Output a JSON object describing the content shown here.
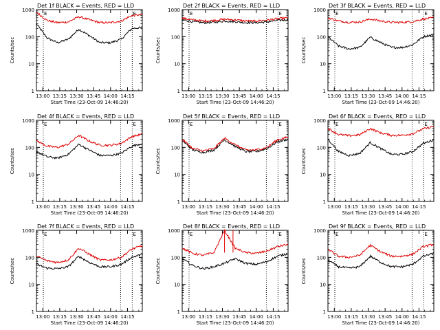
{
  "panel_title_suffix": "BLACK = Events, RED = LLD",
  "ylabel": "Counts/sec",
  "xlabel": "Start Time (23-Oct-09 14:46:20)",
  "x_tick_labels": [
    "13:00",
    "13:15",
    "13:30",
    "13:45",
    "14:00",
    "14:15"
  ],
  "y_tick_labels": [
    "1",
    "10",
    "100",
    "1000"
  ],
  "marker_text": "E",
  "colors": {
    "events": "#000000",
    "lld": "#dd0000",
    "axes": "#000000"
  },
  "chart_data": [
    {
      "type": "line",
      "title": "Det 1f BLACK = Events, RED = LLD",
      "xlabel": "Start Time (23-Oct-09 14:46:20)",
      "ylabel": "Counts/sec",
      "scale": "log",
      "ylim": [
        1,
        1000
      ],
      "x": [
        0.0,
        0.1,
        0.2,
        0.3,
        0.4,
        0.5,
        0.6,
        0.7,
        0.8,
        0.9,
        1.0
      ],
      "series": [
        {
          "name": "Events",
          "color": "#000000",
          "values": [
            300,
            90,
            60,
            80,
            190,
            110,
            60,
            60,
            80,
            200,
            220
          ]
        },
        {
          "name": "LLD",
          "color": "#dd0000",
          "values": [
            800,
            400,
            330,
            350,
            550,
            420,
            330,
            330,
            380,
            600,
            650
          ]
        }
      ]
    },
    {
      "type": "line",
      "title": "Det 2f BLACK = Events, RED = LLD",
      "xlabel": "Start Time (23-Oct-09 14:46:20)",
      "ylabel": "Counts/sec",
      "scale": "log",
      "ylim": [
        1,
        1000
      ],
      "x": [
        0.0,
        0.1,
        0.2,
        0.3,
        0.4,
        0.5,
        0.6,
        0.7,
        0.8,
        0.9,
        1.0
      ],
      "series": [
        {
          "name": "Events",
          "color": "#000000",
          "values": [
            420,
            360,
            330,
            340,
            380,
            360,
            330,
            330,
            350,
            400,
            420
          ]
        },
        {
          "name": "LLD",
          "color": "#dd0000",
          "values": [
            480,
            420,
            380,
            400,
            440,
            420,
            380,
            380,
            410,
            460,
            500
          ]
        }
      ]
    },
    {
      "type": "line",
      "title": "Det 3f BLACK = Events, RED = LLD",
      "xlabel": "Start Time (23-Oct-09 14:46:20)",
      "ylabel": "Counts/sec",
      "scale": "log",
      "ylim": [
        1,
        1000
      ],
      "x": [
        0.0,
        0.1,
        0.2,
        0.3,
        0.4,
        0.5,
        0.6,
        0.7,
        0.8,
        0.9,
        1.0
      ],
      "series": [
        {
          "name": "Events",
          "color": "#000000",
          "values": [
            100,
            45,
            35,
            40,
            95,
            60,
            40,
            40,
            50,
            100,
            120
          ]
        },
        {
          "name": "LLD",
          "color": "#dd0000",
          "values": [
            500,
            380,
            340,
            350,
            450,
            380,
            340,
            340,
            360,
            450,
            500
          ]
        }
      ]
    },
    {
      "type": "line",
      "title": "Det 4f BLACK = Events, RED = LLD",
      "xlabel": "Start Time (23-Oct-09 14:46:20)",
      "ylabel": "Counts/sec",
      "scale": "log",
      "ylim": [
        1,
        1000
      ],
      "x": [
        0.0,
        0.1,
        0.2,
        0.3,
        0.4,
        0.5,
        0.6,
        0.7,
        0.8,
        0.9,
        1.0
      ],
      "series": [
        {
          "name": "Events",
          "color": "#000000",
          "values": [
            70,
            45,
            40,
            55,
            130,
            80,
            50,
            50,
            60,
            110,
            140
          ]
        },
        {
          "name": "LLD",
          "color": "#dd0000",
          "values": [
            180,
            110,
            100,
            130,
            280,
            170,
            120,
            120,
            140,
            250,
            310
          ]
        }
      ]
    },
    {
      "type": "line",
      "title": "Det 5f BLACK = Events, RED = LLD",
      "xlabel": "Start Time (23-Oct-09 14:46:20)",
      "ylabel": "Counts/sec",
      "scale": "log",
      "ylim": [
        1,
        1000
      ],
      "x": [
        0.0,
        0.1,
        0.2,
        0.3,
        0.4,
        0.5,
        0.6,
        0.7,
        0.8,
        0.9,
        1.0
      ],
      "series": [
        {
          "name": "Events",
          "color": "#000000",
          "values": [
            180,
            80,
            65,
            80,
            190,
            110,
            70,
            70,
            90,
            160,
            200
          ]
        },
        {
          "name": "LLD",
          "color": "#dd0000",
          "values": [
            200,
            90,
            75,
            90,
            220,
            125,
            80,
            80,
            100,
            190,
            240
          ]
        }
      ]
    },
    {
      "type": "line",
      "title": "Det 6f BLACK = Events, RED = LLD",
      "xlabel": "Start Time (23-Oct-09 14:46:20)",
      "ylabel": "Counts/sec",
      "scale": "log",
      "ylim": [
        1,
        1000
      ],
      "x": [
        0.0,
        0.1,
        0.2,
        0.3,
        0.4,
        0.5,
        0.6,
        0.7,
        0.8,
        0.9,
        1.0
      ],
      "series": [
        {
          "name": "Events",
          "color": "#000000",
          "values": [
            200,
            70,
            50,
            60,
            150,
            90,
            55,
            55,
            70,
            140,
            190
          ]
        },
        {
          "name": "LLD",
          "color": "#dd0000",
          "values": [
            500,
            300,
            270,
            290,
            500,
            340,
            280,
            280,
            320,
            480,
            600
          ]
        }
      ]
    },
    {
      "type": "line",
      "title": "Det 7f BLACK = Events, RED = LLD",
      "xlabel": "Start Time (23-Oct-09 14:46:20)",
      "ylabel": "Counts/sec",
      "scale": "log",
      "ylim": [
        1,
        1000
      ],
      "x": [
        0.0,
        0.1,
        0.2,
        0.3,
        0.4,
        0.5,
        0.6,
        0.7,
        0.8,
        0.9,
        1.0
      ],
      "series": [
        {
          "name": "Events",
          "color": "#000000",
          "values": [
            55,
            40,
            38,
            45,
            110,
            65,
            45,
            45,
            55,
            100,
            130
          ]
        },
        {
          "name": "LLD",
          "color": "#dd0000",
          "values": [
            110,
            75,
            65,
            80,
            220,
            130,
            80,
            80,
            100,
            200,
            270
          ]
        }
      ]
    },
    {
      "type": "line",
      "title": "Det 8f BLACK = Events, RED = LLD",
      "xlabel": "Start Time (23-Oct-09 14:46:20)",
      "ylabel": "Counts/sec",
      "scale": "log",
      "ylim": [
        1,
        1000
      ],
      "x": [
        0.0,
        0.1,
        0.2,
        0.3,
        0.4,
        0.5,
        0.6,
        0.7,
        0.8,
        0.9,
        1.0
      ],
      "series": [
        {
          "name": "Events",
          "color": "#000000",
          "values": [
            90,
            50,
            38,
            45,
            60,
            90,
            60,
            55,
            70,
            110,
            140
          ]
        },
        {
          "name": "LLD",
          "color": "#dd0000",
          "values": [
            220,
            140,
            120,
            150,
            1000,
            220,
            150,
            140,
            170,
            250,
            300
          ]
        }
      ]
    },
    {
      "type": "line",
      "title": "Det 9f BLACK = Events, RED = LLD",
      "xlabel": "Start Time (23-Oct-09 14:46:20)",
      "ylabel": "Counts/sec",
      "scale": "log",
      "ylim": [
        1,
        1000
      ],
      "x": [
        0.0,
        0.1,
        0.2,
        0.3,
        0.4,
        0.5,
        0.6,
        0.7,
        0.8,
        0.9,
        1.0
      ],
      "series": [
        {
          "name": "Events",
          "color": "#000000",
          "values": [
            80,
            45,
            40,
            45,
            110,
            65,
            45,
            45,
            55,
            110,
            140
          ]
        },
        {
          "name": "LLD",
          "color": "#dd0000",
          "values": [
            200,
            110,
            100,
            120,
            280,
            160,
            110,
            110,
            130,
            250,
            300
          ]
        }
      ]
    }
  ]
}
